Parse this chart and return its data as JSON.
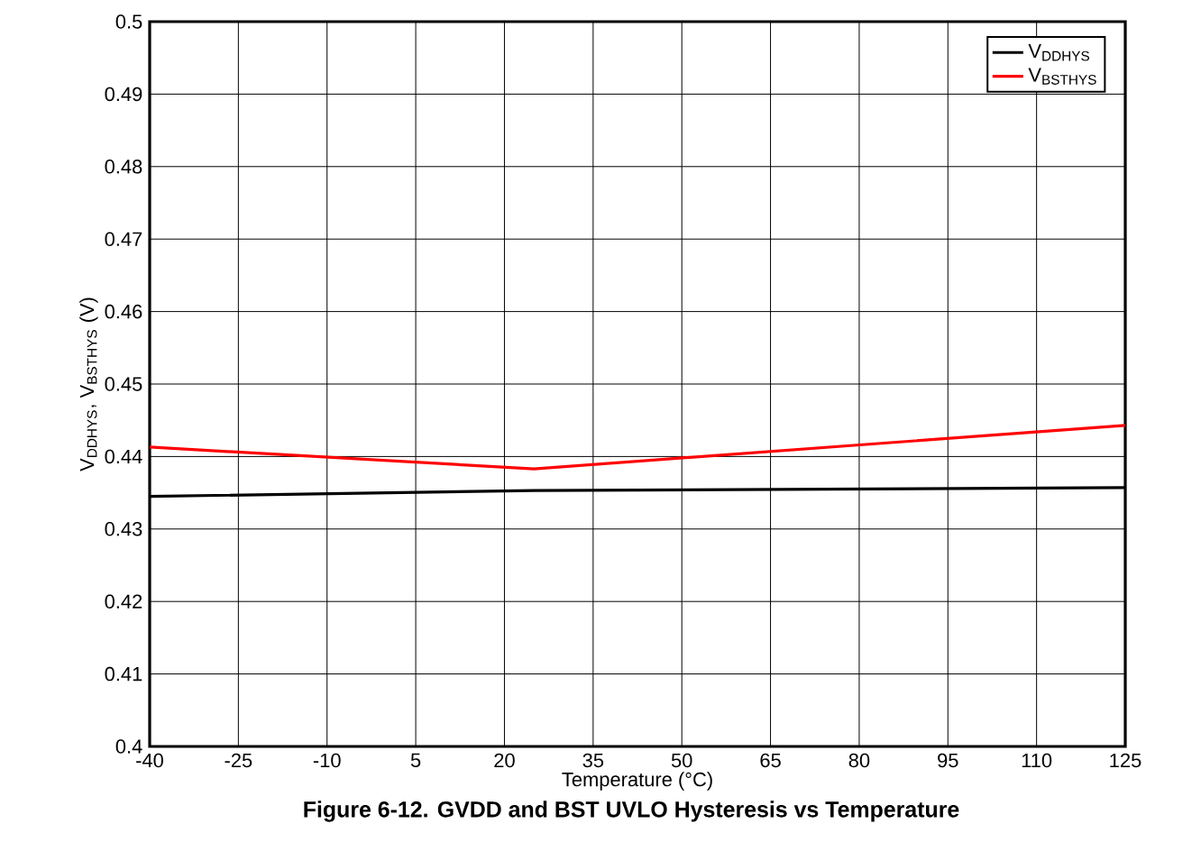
{
  "chart_data": {
    "type": "line",
    "title": "Figure 6-12. GVDD and BST UVLO Hysteresis vs Temperature",
    "xlabel": "Temperature (°C)",
    "ylabel": "V$_{DDHYS}$, V$_{BSTHYS}$ (V)",
    "xlim": [
      -40,
      125
    ],
    "xticks": [
      -40,
      -25,
      -10,
      5,
      20,
      35,
      50,
      65,
      80,
      95,
      110,
      125
    ],
    "ylim": [
      0.4,
      0.5
    ],
    "yticks": [
      0.4,
      0.41,
      0.42,
      0.43,
      0.44,
      0.45,
      0.46,
      0.47,
      0.48,
      0.49,
      0.5
    ],
    "grid": true,
    "legend": "top right",
    "marker": "none",
    "line_style": "solid",
    "series": [
      {
        "name": "V$_{DDHYS}$",
        "color": "#000000",
        "x": [
          -40,
          25,
          125
        ],
        "values": [
          0.4345,
          0.4353,
          0.4357
        ]
      },
      {
        "name": "V$_{BSTHYS}$",
        "color": "#ff0000",
        "x": [
          -40,
          25,
          125
        ],
        "values": [
          0.4413,
          0.4383,
          0.4443
        ]
      }
    ]
  }
}
